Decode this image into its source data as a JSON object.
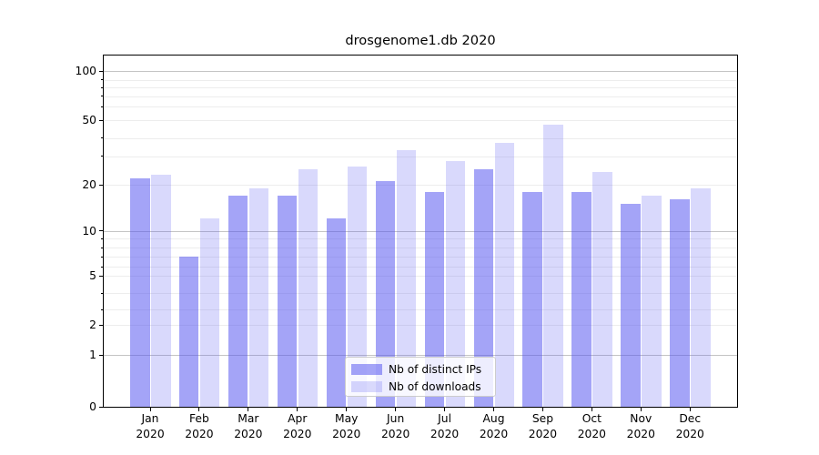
{
  "figure": {
    "background": "#ffffff",
    "text_color": "#000000"
  },
  "chart_data": {
    "type": "bar",
    "title": "drosgenome1.db 2020",
    "categories": [
      "Jan 2020",
      "Feb 2020",
      "Mar 2020",
      "Apr 2020",
      "May 2020",
      "Jun 2020",
      "Jul 2020",
      "Aug 2020",
      "Sep 2020",
      "Oct 2020",
      "Nov 2020",
      "Dec 2020"
    ],
    "series": [
      {
        "key": "ips",
        "name": "Nb of distinct IPs",
        "color": "rgba(80,80,240,0.52)",
        "values": [
          22,
          7,
          17,
          17,
          12,
          21,
          18,
          25,
          18,
          18,
          15,
          16
        ]
      },
      {
        "key": "downloads",
        "name": "Nb of downloads",
        "color": "rgba(80,80,240,0.22)",
        "values": [
          23,
          12,
          19,
          25,
          26,
          33,
          28,
          37,
          47,
          24,
          17,
          19
        ]
      }
    ],
    "xlabel": "",
    "ylabel": "",
    "yscale": "symlog",
    "ylim": [
      0,
      125
    ],
    "yticks": [
      0,
      1,
      2,
      5,
      10,
      20,
      50,
      100
    ],
    "yticks_minor": [
      3,
      4,
      6,
      7,
      8,
      9,
      30,
      40,
      60,
      70,
      80,
      90
    ],
    "ygrid_major": [
      1,
      10,
      100
    ],
    "grid": true,
    "legend_position": "lower center"
  },
  "colors": {
    "grid_minor": "#ededed",
    "grid_major": "#c4c4c4",
    "axis": "#000000",
    "legend_border": "#cccccc",
    "legend_background": "rgba(255,255,255,0.8)"
  }
}
